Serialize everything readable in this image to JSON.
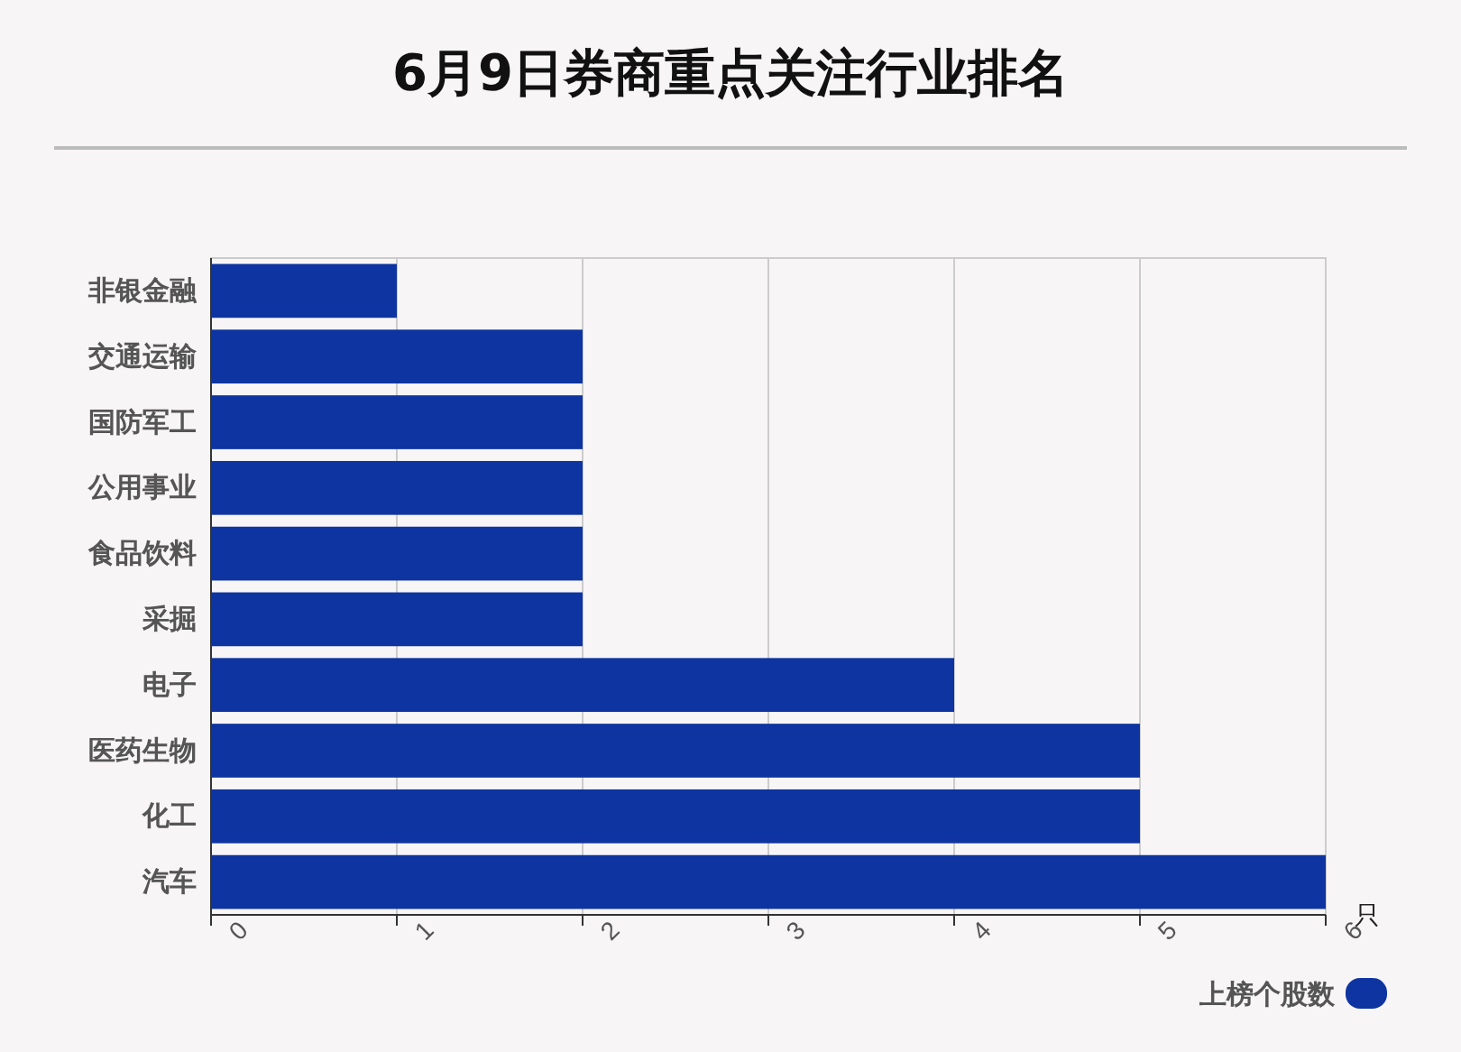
{
  "chart_data": {
    "type": "bar",
    "orientation": "horizontal",
    "title": "6月9日券商重点关注行业排名",
    "xlabel": "只",
    "categories": [
      "非银金融",
      "交通运输",
      "国防军工",
      "公用事业",
      "食品饮料",
      "采掘",
      "电子",
      "医药生物",
      "化工",
      "汽车"
    ],
    "series": [
      {
        "name": "上榜个股数",
        "color": "#0d34a0",
        "values": [
          1,
          2,
          2,
          2,
          2,
          2,
          4,
          5,
          5,
          6
        ]
      }
    ],
    "xlim": [
      0,
      6
    ],
    "xticks": [
      0,
      1,
      2,
      3,
      4,
      5,
      6
    ],
    "grid": "x",
    "legend": "bottom right"
  }
}
